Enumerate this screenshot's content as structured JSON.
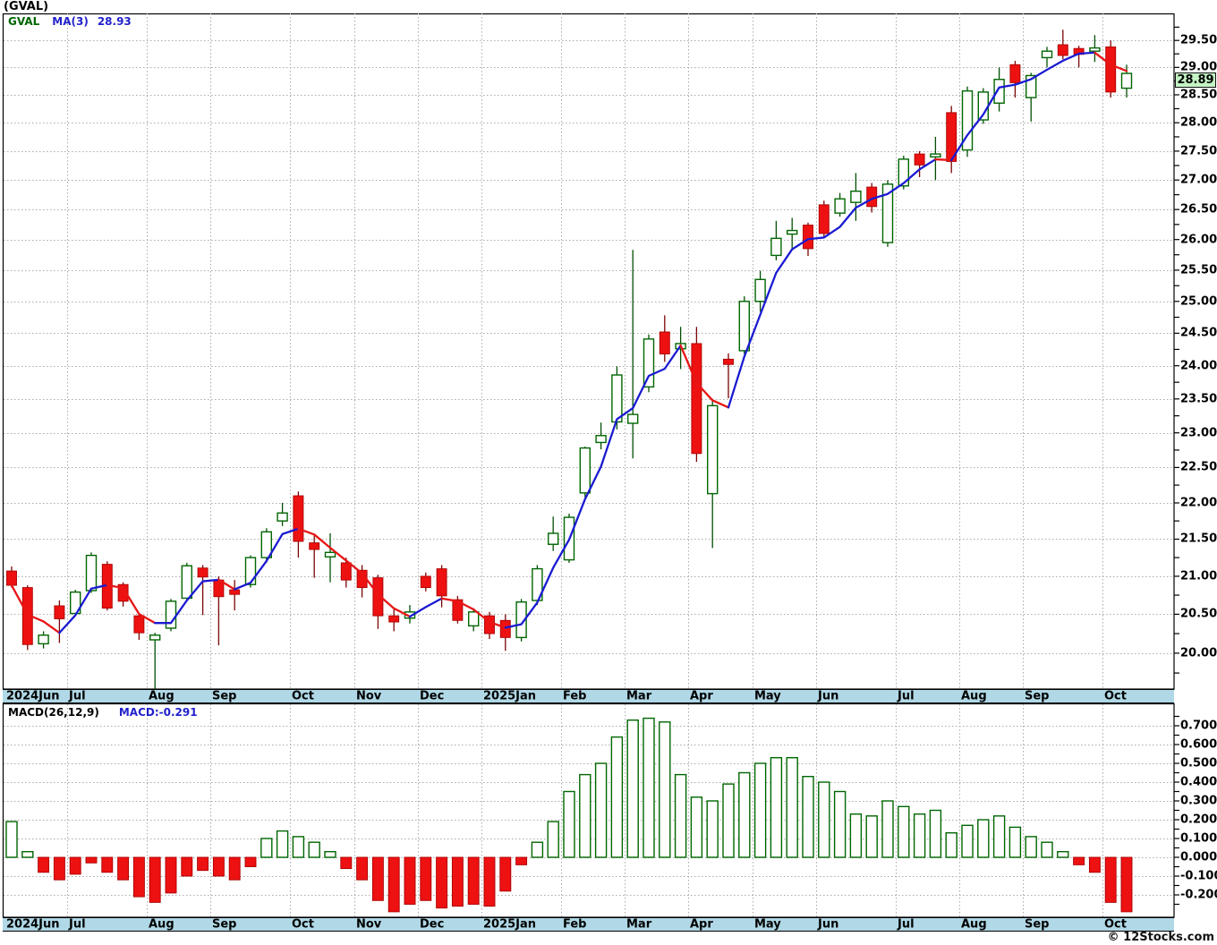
{
  "header": {
    "title": "(GVAL)"
  },
  "legend": {
    "symbol": "GVAL",
    "ma_label": "MA(3)",
    "ma_value": "28.93"
  },
  "macd_panel": {
    "indicator_label": "MACD(26,12,9)",
    "value_label": "MACD:-0.291",
    "axis_labels": [
      "0.700",
      "0.600",
      "0.500",
      "0.400",
      "0.300",
      "0.200",
      "0.100",
      "0.000",
      "-0.100",
      "-0.200"
    ]
  },
  "price_axis": {
    "labels": [
      "29.50",
      "29.00",
      "28.50",
      "28.00",
      "27.50",
      "27.00",
      "26.50",
      "26.00",
      "25.50",
      "25.00",
      "24.50",
      "24.00",
      "23.50",
      "23.00",
      "22.50",
      "22.00",
      "21.50",
      "21.00",
      "20.50",
      "20.00"
    ],
    "last_price": "28.89"
  },
  "watermark": "© 12Stocks.com",
  "colors": {
    "up_candle_stroke": "#006600",
    "up_candle_fill": "#ffffff",
    "down_candle_fill": "#ee1111",
    "down_candle_stroke": "#aa0000",
    "up_wick": "#034f03",
    "down_wick": "#7a0505",
    "ma_up": "#1a1ad2",
    "ma_down": "#e81515",
    "grid": "#ababab",
    "band_bg": "#b0d8e6",
    "badge_bg": "#c4f4c4",
    "macd_value_color": "#2222cc"
  },
  "chart_data": {
    "type": "candlestick",
    "symbol": "GVAL",
    "interval": "weekly",
    "price_scale": "log",
    "ma_period": 3,
    "ma_last": 28.93,
    "last_close": 28.89,
    "price_axis_range": [
      19.55,
      30.01
    ],
    "price_label_step": 0.5,
    "candles_ohlc": [
      [
        21.07,
        21.13,
        20.85,
        20.88
      ],
      [
        20.85,
        20.88,
        20.04,
        20.11
      ],
      [
        20.12,
        20.28,
        20.06,
        20.23
      ],
      [
        20.61,
        20.68,
        20.13,
        20.44
      ],
      [
        20.51,
        20.82,
        20.48,
        20.79
      ],
      [
        20.81,
        21.32,
        20.78,
        21.28
      ],
      [
        21.16,
        21.2,
        20.55,
        20.58
      ],
      [
        20.89,
        20.92,
        20.6,
        20.67
      ],
      [
        20.48,
        20.5,
        20.17,
        20.26
      ],
      [
        20.17,
        20.26,
        19.44,
        20.23
      ],
      [
        20.32,
        20.7,
        20.28,
        20.67
      ],
      [
        20.71,
        21.18,
        20.68,
        21.14
      ],
      [
        21.11,
        21.15,
        20.49,
        20.99
      ],
      [
        20.95,
        21.0,
        20.1,
        20.73
      ],
      [
        20.82,
        20.95,
        20.55,
        20.76
      ],
      [
        20.89,
        21.28,
        20.85,
        21.25
      ],
      [
        21.25,
        21.65,
        21.18,
        21.6
      ],
      [
        21.75,
        22.0,
        21.68,
        21.86
      ],
      [
        22.1,
        22.16,
        21.25,
        21.47
      ],
      [
        21.45,
        21.55,
        20.98,
        21.36
      ],
      [
        21.26,
        21.58,
        20.92,
        21.32
      ],
      [
        21.18,
        21.25,
        20.85,
        20.95
      ],
      [
        21.08,
        21.15,
        20.72,
        20.85
      ],
      [
        20.98,
        21.02,
        20.31,
        20.48
      ],
      [
        20.48,
        20.58,
        20.28,
        20.4
      ],
      [
        20.45,
        20.62,
        20.38,
        20.53
      ],
      [
        21.0,
        21.05,
        20.8,
        20.85
      ],
      [
        21.1,
        21.15,
        20.59,
        20.74
      ],
      [
        20.69,
        20.74,
        20.38,
        20.42
      ],
      [
        20.35,
        20.58,
        20.28,
        20.53
      ],
      [
        20.48,
        20.53,
        20.18,
        20.25
      ],
      [
        20.42,
        20.5,
        20.03,
        20.2
      ],
      [
        20.2,
        20.7,
        20.15,
        20.66
      ],
      [
        20.68,
        21.15,
        20.62,
        21.1
      ],
      [
        21.43,
        21.81,
        21.34,
        21.58
      ],
      [
        21.22,
        21.85,
        21.18,
        21.8
      ],
      [
        22.14,
        22.8,
        22.08,
        22.78
      ],
      [
        22.86,
        23.15,
        22.76,
        22.96
      ],
      [
        23.16,
        23.99,
        23.05,
        23.86
      ],
      [
        23.14,
        25.83,
        22.63,
        23.27
      ],
      [
        23.68,
        24.48,
        23.6,
        24.41
      ],
      [
        24.52,
        24.78,
        24.06,
        24.18
      ],
      [
        24.26,
        24.6,
        23.95,
        24.34
      ],
      [
        24.34,
        24.6,
        22.58,
        22.7
      ],
      [
        22.13,
        23.5,
        21.38,
        23.4
      ],
      [
        24.1,
        24.19,
        23.51,
        24.02
      ],
      [
        24.23,
        25.08,
        24.18,
        25.0
      ],
      [
        25.0,
        25.49,
        24.84,
        25.35
      ],
      [
        25.74,
        26.31,
        25.66,
        26.02
      ],
      [
        26.09,
        26.36,
        25.82,
        26.15
      ],
      [
        26.24,
        26.28,
        25.73,
        25.85
      ],
      [
        26.58,
        26.65,
        26.02,
        26.1
      ],
      [
        26.44,
        26.78,
        26.38,
        26.68
      ],
      [
        26.62,
        27.12,
        26.31,
        26.81
      ],
      [
        26.88,
        26.95,
        26.45,
        26.55
      ],
      [
        25.95,
        27.0,
        25.88,
        26.93
      ],
      [
        26.9,
        27.42,
        26.84,
        27.36
      ],
      [
        27.45,
        27.5,
        27.05,
        27.26
      ],
      [
        27.4,
        27.75,
        27.0,
        27.45
      ],
      [
        28.18,
        28.3,
        27.12,
        27.32
      ],
      [
        27.52,
        28.65,
        27.4,
        28.57
      ],
      [
        28.05,
        28.62,
        27.98,
        28.55
      ],
      [
        28.35,
        29.0,
        28.2,
        28.78
      ],
      [
        29.05,
        29.12,
        28.45,
        28.72
      ],
      [
        28.45,
        28.9,
        28.02,
        28.85
      ],
      [
        29.18,
        29.38,
        29.0,
        29.3
      ],
      [
        29.42,
        29.7,
        29.15,
        29.22
      ],
      [
        29.35,
        29.4,
        29.0,
        29.24
      ],
      [
        29.3,
        29.6,
        29.1,
        29.36
      ],
      [
        29.38,
        29.5,
        28.45,
        28.55
      ],
      [
        28.62,
        29.05,
        28.45,
        28.89
      ]
    ],
    "months": [
      {
        "label": "2024Jun",
        "start_index": 0
      },
      {
        "label": "Jul",
        "start_index": 4
      },
      {
        "label": "Aug",
        "start_index": 9
      },
      {
        "label": "Sep",
        "start_index": 13
      },
      {
        "label": "Oct",
        "start_index": 18
      },
      {
        "label": "Nov",
        "start_index": 22
      },
      {
        "label": "Dec",
        "start_index": 26
      },
      {
        "label": "2025Jan",
        "start_index": 30
      },
      {
        "label": "Feb",
        "start_index": 35
      },
      {
        "label": "Mar",
        "start_index": 39
      },
      {
        "label": "Apr",
        "start_index": 43
      },
      {
        "label": "May",
        "start_index": 47
      },
      {
        "label": "Jun",
        "start_index": 51
      },
      {
        "label": "Jul",
        "start_index": 56
      },
      {
        "label": "Aug",
        "start_index": 60
      },
      {
        "label": "Sep",
        "start_index": 64
      },
      {
        "label": "Oct",
        "start_index": 69
      }
    ],
    "macd": {
      "type": "bar",
      "params": "26,12,9",
      "current_value": -0.291,
      "axis_label_step": 0.1,
      "axis_range": [
        -0.26,
        0.82
      ],
      "values": [
        0.19,
        0.03,
        -0.08,
        -0.12,
        -0.09,
        -0.03,
        -0.08,
        -0.12,
        -0.21,
        -0.24,
        -0.19,
        -0.1,
        -0.07,
        -0.1,
        -0.12,
        -0.05,
        0.1,
        0.14,
        0.11,
        0.08,
        0.03,
        -0.06,
        -0.12,
        -0.23,
        -0.29,
        -0.25,
        -0.23,
        -0.27,
        -0.26,
        -0.25,
        -0.26,
        -0.18,
        -0.04,
        0.08,
        0.19,
        0.35,
        0.44,
        0.5,
        0.64,
        0.73,
        0.74,
        0.72,
        0.44,
        0.32,
        0.3,
        0.39,
        0.45,
        0.5,
        0.53,
        0.53,
        0.43,
        0.4,
        0.35,
        0.23,
        0.22,
        0.3,
        0.27,
        0.23,
        0.25,
        0.13,
        0.17,
        0.2,
        0.22,
        0.16,
        0.11,
        0.08,
        0.03,
        -0.04,
        -0.08,
        -0.24,
        -0.29
      ]
    }
  }
}
